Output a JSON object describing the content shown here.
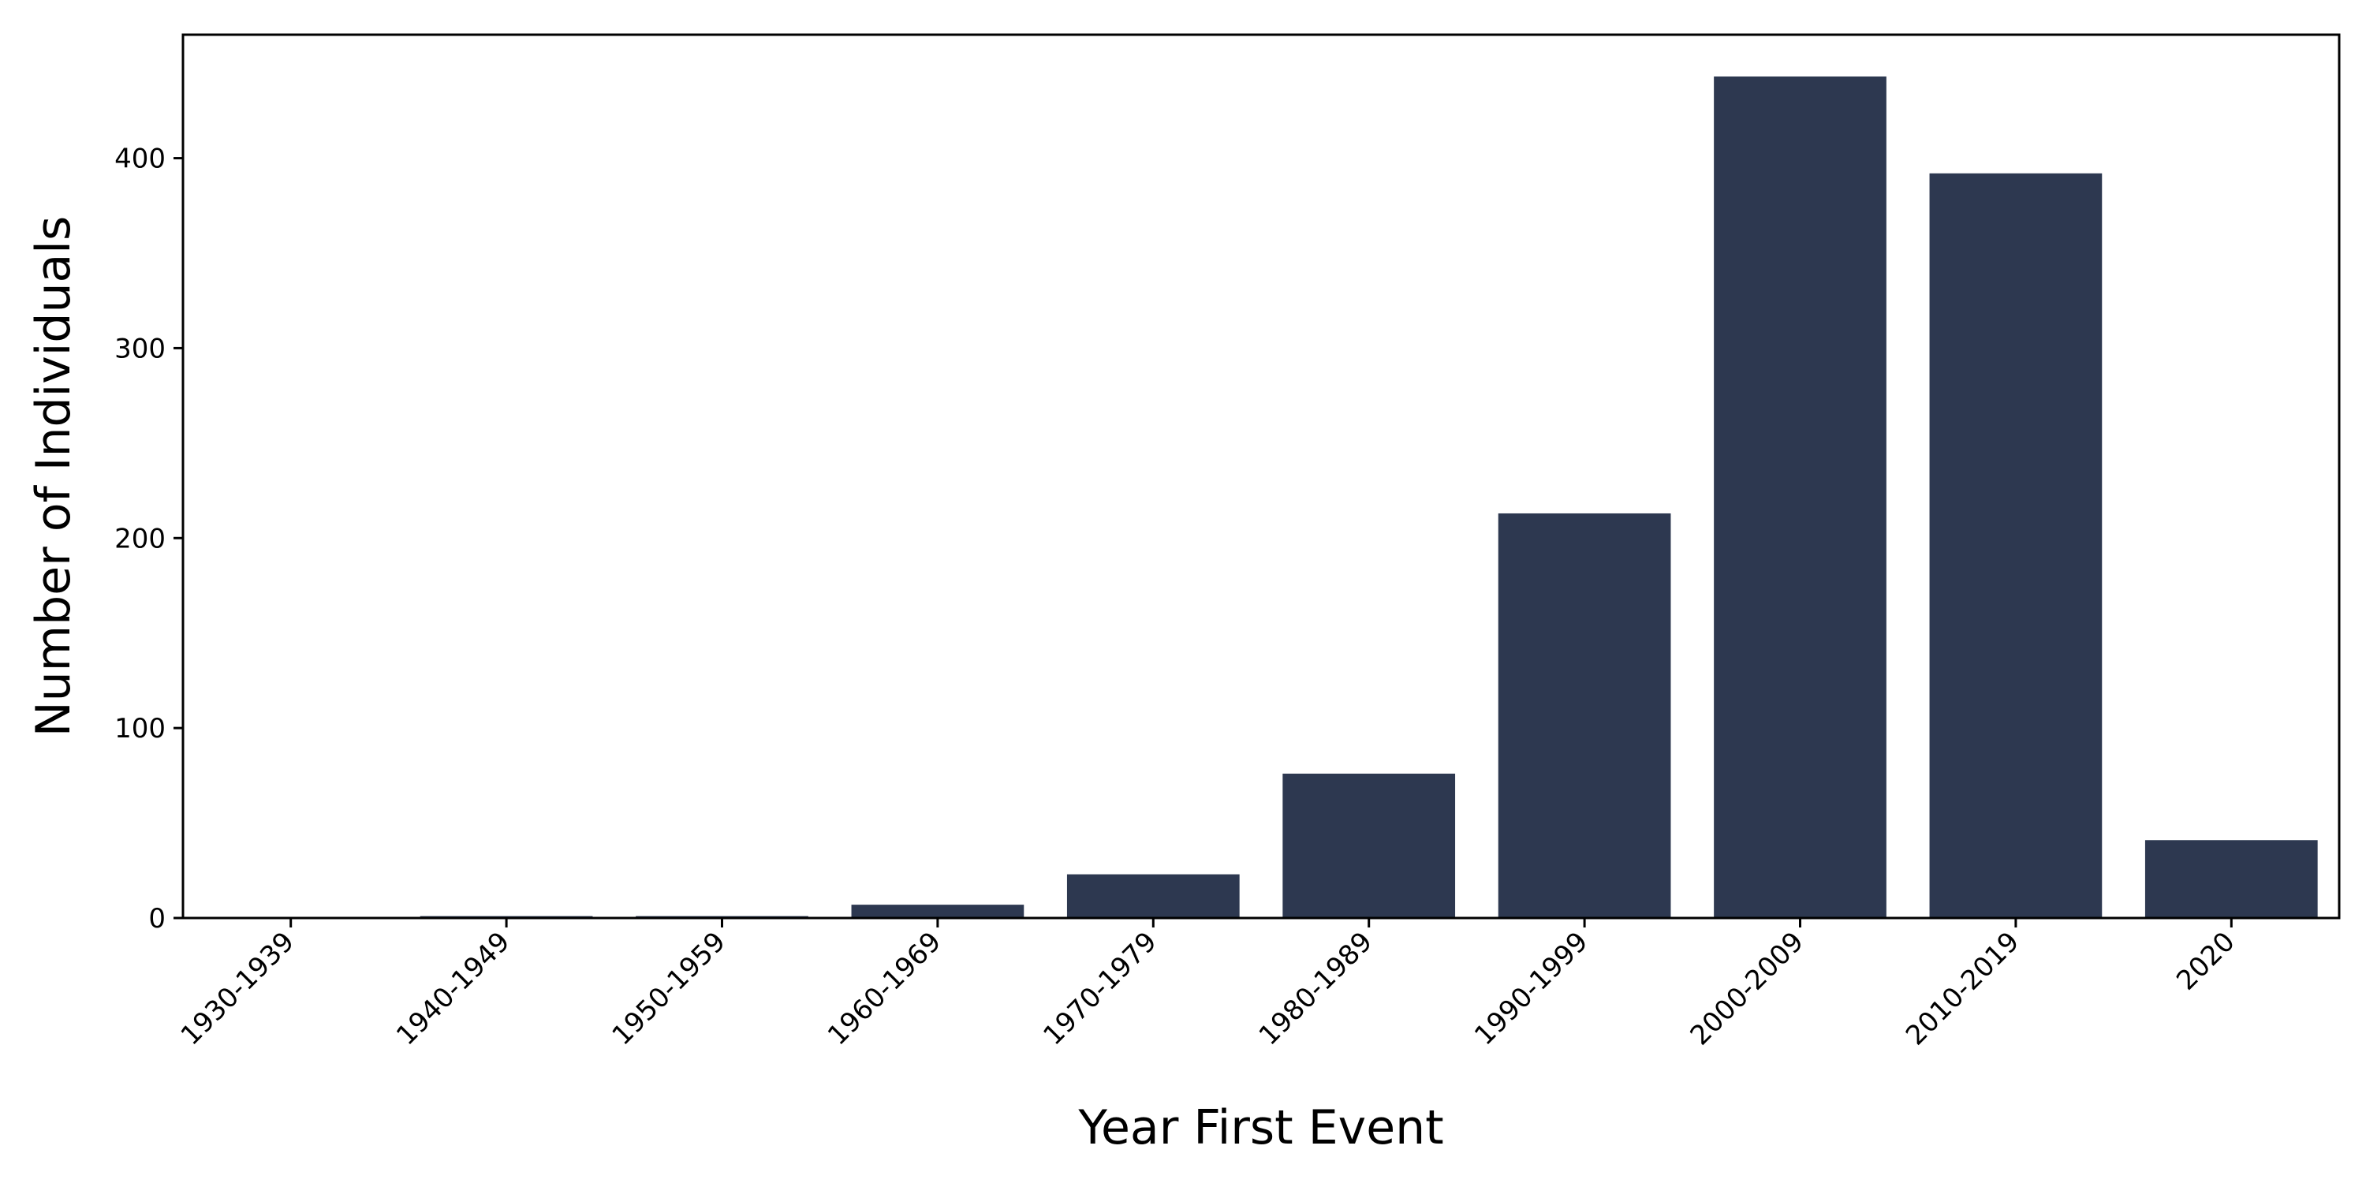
{
  "chart_data": {
    "type": "bar",
    "categories": [
      "1930-1939",
      "1940-1949",
      "1950-1959",
      "1960-1969",
      "1970-1979",
      "1980-1989",
      "1990-1999",
      "2000-2009",
      "2010-2019",
      "2020"
    ],
    "values": [
      0,
      1,
      1,
      7,
      23,
      76,
      213,
      443,
      392,
      41
    ],
    "xlabel": "Year First Event",
    "ylabel": "Number of Individuals",
    "ylim": [
      0,
      465
    ],
    "yticks": [
      0,
      100,
      200,
      300,
      400
    ],
    "grid": false,
    "bar_color": "#2d3850",
    "axis_color": "#000000"
  }
}
